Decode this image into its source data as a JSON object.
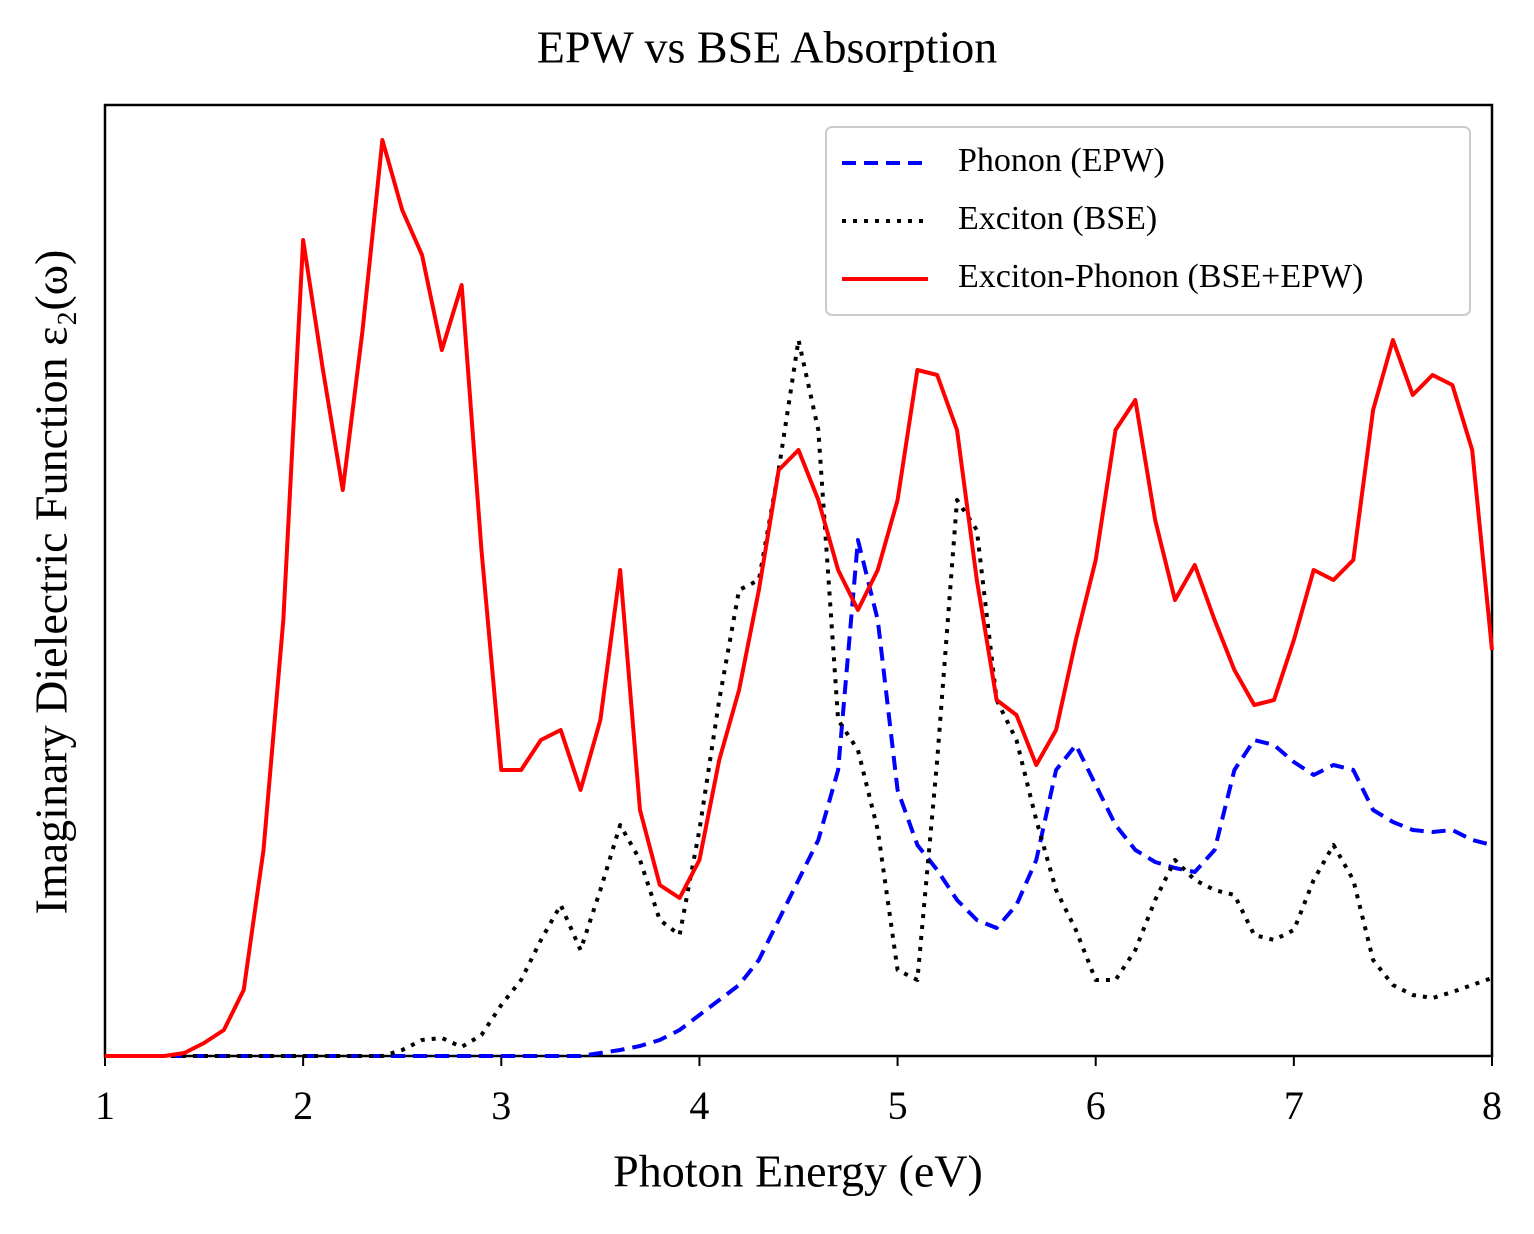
{
  "chart_data": {
    "type": "line",
    "title": "EPW vs BSE Absorption",
    "x_label": "Photon Energy (eV)",
    "y_label": "Imaginary Dielectric Function ε₂(ω)",
    "x": [
      1.0,
      1.1,
      1.2,
      1.3,
      1.4,
      1.5,
      1.6,
      1.7,
      1.8,
      1.9,
      2.0,
      2.1,
      2.2,
      2.3,
      2.4,
      2.5,
      2.6,
      2.7,
      2.8,
      2.9,
      3.0,
      3.1,
      3.2,
      3.3,
      3.4,
      3.5,
      3.6,
      3.7,
      3.8,
      3.9,
      4.0,
      4.1,
      4.2,
      4.3,
      4.4,
      4.5,
      4.6,
      4.7,
      4.8,
      4.9,
      5.0,
      5.1,
      5.2,
      5.3,
      5.4,
      5.5,
      5.6,
      5.7,
      5.8,
      5.9,
      6.0,
      6.1,
      6.2,
      6.3,
      6.4,
      6.5,
      6.6,
      6.7,
      6.8,
      6.9,
      7.0,
      7.1,
      7.2,
      7.3,
      7.4,
      7.5,
      7.6,
      7.7,
      7.8,
      7.9,
      8.0
    ],
    "series": [
      {
        "name": "Phonon (EPW)",
        "color": "#0000ff",
        "linestyle": "dashed",
        "values": [
          0,
          0,
          0,
          0,
          0,
          0,
          0,
          0,
          0,
          0,
          0,
          0,
          0,
          0,
          0,
          0,
          0,
          0,
          0,
          0,
          0,
          0,
          0,
          0,
          0,
          0.03,
          0.06,
          0.1,
          0.16,
          0.26,
          0.41,
          0.56,
          0.71,
          0.96,
          1.36,
          1.76,
          2.16,
          2.86,
          5.16,
          4.36,
          2.66,
          2.11,
          1.86,
          1.56,
          1.36,
          1.28,
          1.51,
          1.96,
          2.86,
          3.11,
          2.71,
          2.31,
          2.06,
          1.94,
          1.88,
          1.84,
          2.06,
          2.86,
          3.16,
          3.11,
          2.94,
          2.81,
          2.91,
          2.86,
          2.46,
          2.34,
          2.26,
          2.24,
          2.26,
          2.16,
          2.11
        ]
      },
      {
        "name": "Exciton (BSE)",
        "color": "#000000",
        "linestyle": "dotted",
        "values": [
          0,
          0,
          0,
          0,
          0,
          0,
          0,
          0,
          0,
          0,
          0,
          0,
          0,
          0,
          0,
          0.06,
          0.16,
          0.18,
          0.09,
          0.21,
          0.51,
          0.76,
          1.16,
          1.51,
          1.06,
          1.66,
          2.31,
          1.96,
          1.36,
          1.21,
          2.26,
          3.56,
          4.66,
          4.76,
          5.86,
          7.16,
          6.26,
          3.36,
          3.06,
          2.26,
          0.86,
          0.76,
          2.96,
          5.56,
          5.26,
          3.56,
          3.16,
          2.36,
          1.66,
          1.26,
          0.76,
          0.76,
          1.06,
          1.56,
          1.96,
          1.76,
          1.66,
          1.61,
          1.21,
          1.16,
          1.26,
          1.76,
          2.11,
          1.76,
          0.96,
          0.71,
          0.61,
          0.58,
          0.64,
          0.71,
          0.78
        ]
      },
      {
        "name": "Exciton-Phonon (BSE+EPW)",
        "color": "#ff0000",
        "linestyle": "solid",
        "values": [
          0,
          0,
          0,
          0,
          0.03,
          0.13,
          0.26,
          0.66,
          2.06,
          4.36,
          8.16,
          6.86,
          5.66,
          7.26,
          9.16,
          8.46,
          8.01,
          7.06,
          7.71,
          5.06,
          2.86,
          2.86,
          3.16,
          3.26,
          2.66,
          3.36,
          4.86,
          2.46,
          1.71,
          1.58,
          1.96,
          2.96,
          3.66,
          4.66,
          5.86,
          6.06,
          5.56,
          4.86,
          4.46,
          4.86,
          5.56,
          6.86,
          6.81,
          6.26,
          4.76,
          3.56,
          3.41,
          2.91,
          3.26,
          4.16,
          4.96,
          6.26,
          6.56,
          5.36,
          4.56,
          4.91,
          4.36,
          3.86,
          3.51,
          3.56,
          4.16,
          4.86,
          4.76,
          4.96,
          6.46,
          7.16,
          6.61,
          6.81,
          6.71,
          6.06,
          4.06
        ]
      }
    ],
    "xlim": [
      1,
      8
    ],
    "xticks": [
      1,
      2,
      3,
      4,
      5,
      6,
      7,
      8
    ],
    "ylim": [
      0,
      9.51
    ],
    "legend": "upper right",
    "grid": false
  }
}
